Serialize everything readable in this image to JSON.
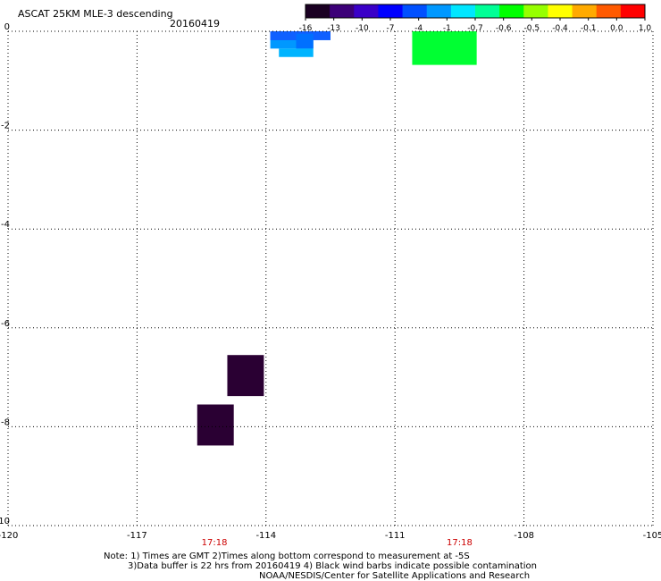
{
  "chart_data": {
    "type": "heatmap",
    "title": "ASCAT 25KM MLE-3 descending",
    "date": "20160419",
    "xlim": [
      -120,
      -105
    ],
    "ylim": [
      -10,
      0
    ],
    "x_ticks": [
      "-120",
      "-117",
      "-114",
      "-111",
      "-108",
      "-105"
    ],
    "x_tick_values": [
      -120,
      -117,
      -114,
      -111,
      -108,
      -105
    ],
    "y_ticks": [
      "0",
      "-2",
      "-4",
      "-6",
      "-8",
      "-10"
    ],
    "y_tick_values": [
      0,
      -2,
      -4,
      -6,
      -8,
      -10
    ],
    "grid": "dotted",
    "colorbar": {
      "labels": [
        "-16",
        "-13",
        "-10",
        "-7",
        "-4",
        "-1",
        "-0.7",
        "-0.6",
        "-0.5",
        "-0.4",
        "-0.1",
        "0.0",
        "1.0"
      ],
      "colors": [
        "#1a0022",
        "#3c0078",
        "#3a00c8",
        "#0000ff",
        "#0050ff",
        "#0098ff",
        "#00e6ff",
        "#00ff96",
        "#00ff00",
        "#96ff00",
        "#ffff00",
        "#ffaa00",
        "#ff5a00",
        "#ff0000"
      ]
    },
    "time_labels": [
      {
        "text": "17:18",
        "x": -115.2
      },
      {
        "text": "17:18",
        "x": -109.5
      }
    ],
    "cells": [
      {
        "lon": [
          -113.9,
          -112.9
        ],
        "lat": [
          0.0,
          -0.18
        ],
        "color": "#0050ff"
      },
      {
        "lon": [
          -113.9,
          -112.5
        ],
        "lat": [
          0.0,
          -0.18
        ],
        "color": "#1060ff"
      },
      {
        "lon": [
          -113.9,
          -112.9
        ],
        "lat": [
          -0.18,
          -0.35
        ],
        "color": "#0098ff"
      },
      {
        "lon": [
          -113.3,
          -112.9
        ],
        "lat": [
          -0.05,
          -0.35
        ],
        "color": "#0070ff"
      },
      {
        "lon": [
          -113.7,
          -112.9
        ],
        "lat": [
          -0.35,
          -0.52
        ],
        "color": "#00b4ff"
      },
      {
        "lon": [
          -110.6,
          -109.1
        ],
        "lat": [
          0.0,
          -0.68
        ],
        "color": "#00ff32"
      },
      {
        "lon": [
          -114.9,
          -114.05
        ],
        "lat": [
          -6.55,
          -7.38
        ],
        "color": "#2a0033"
      },
      {
        "lon": [
          -115.6,
          -114.75
        ],
        "lat": [
          -7.55,
          -8.38
        ],
        "color": "#2a0033"
      }
    ]
  },
  "notes": {
    "line1": "Note: 1) Times are GMT 2)Times along bottom correspond to measurement at -5S",
    "line2": "3)Data buffer is 22 hrs from 20160419 4) Black wind barbs indicate possible contamination",
    "line3": "NOAA/NESDIS/Center for Satellite Applications and Research"
  }
}
